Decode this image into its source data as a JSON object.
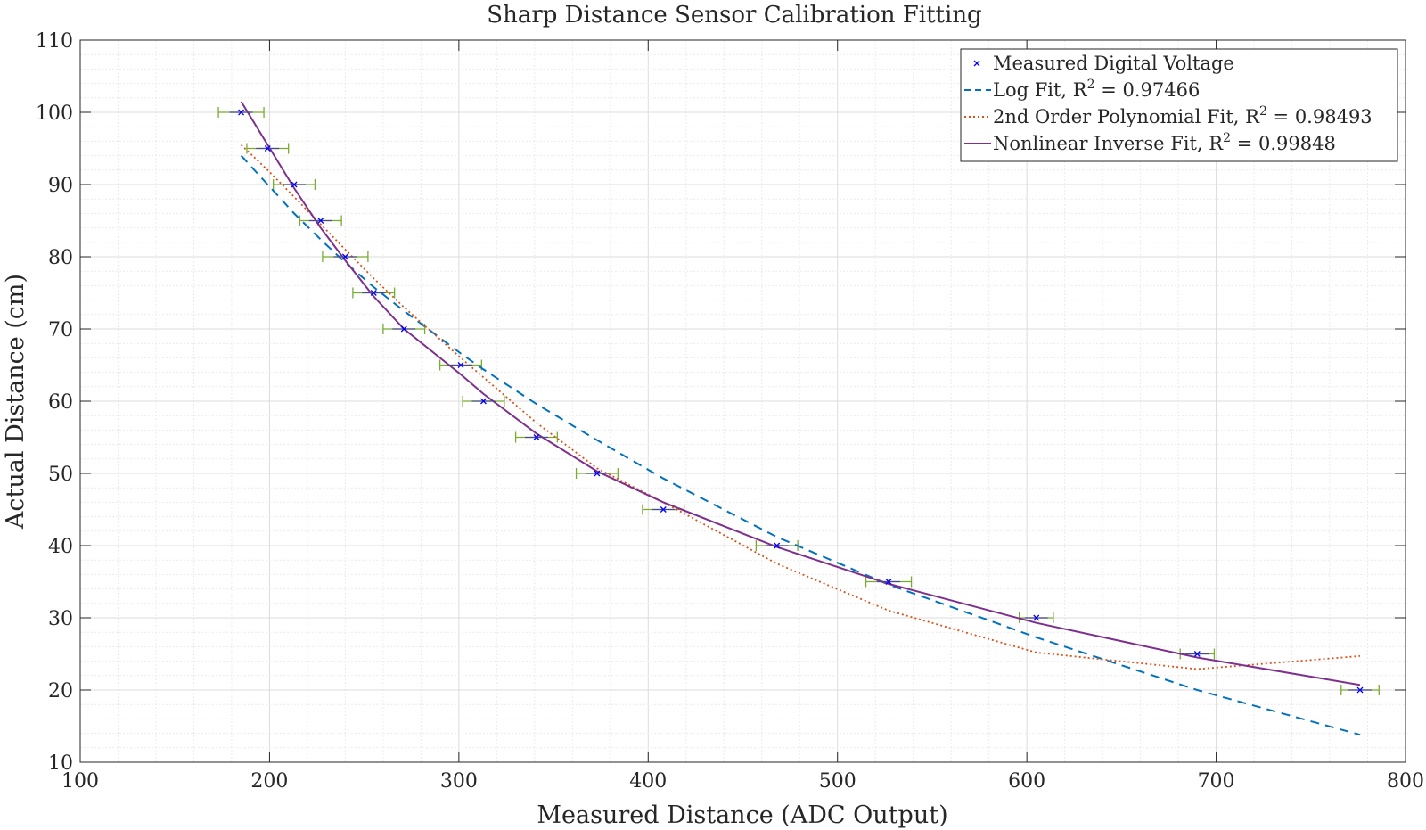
{
  "chart_data": {
    "type": "line",
    "title": "Sharp Distance Sensor Calibration Fitting",
    "xlabel": "Measured Distance (ADC Output)",
    "ylabel": "Actual Distance (cm)",
    "xlim": [
      100,
      800
    ],
    "ylim": [
      10,
      110
    ],
    "xticks": [
      100,
      200,
      300,
      400,
      500,
      600,
      700,
      800
    ],
    "yticks": [
      10,
      20,
      30,
      40,
      50,
      60,
      70,
      80,
      90,
      100,
      110
    ],
    "grid": true,
    "minor_grid": true,
    "legend_position": "top-right",
    "measured": {
      "name": "Measured Digital Voltage",
      "color": "#0000ff",
      "x": [
        185,
        199,
        213,
        227,
        240,
        255,
        271,
        301,
        313,
        341,
        373,
        408,
        468,
        527,
        605,
        690,
        776
      ],
      "y": [
        100,
        95,
        90,
        85,
        80,
        75,
        70,
        65,
        60,
        55,
        50,
        45,
        40,
        35,
        30,
        25,
        20
      ],
      "xerr": [
        12,
        11,
        11,
        11,
        12,
        11,
        11,
        11,
        11,
        11,
        11,
        11,
        11,
        12,
        9,
        9,
        10
      ],
      "errorbar_color": "#77ac30"
    },
    "fits": [
      {
        "name": "Log Fit, R",
        "r2": "0.97466",
        "color": "#0072bd",
        "dash": "10 7",
        "x": [
          185,
          199,
          213,
          227,
          240,
          255,
          271,
          301,
          313,
          341,
          373,
          408,
          468,
          527,
          605,
          690,
          776
        ],
        "y": [
          94.0,
          90.0,
          86.0,
          82.4,
          79.2,
          75.8,
          72.5,
          66.6,
          64.4,
          59.6,
          54.6,
          49.3,
          41.2,
          34.6,
          27.3,
          20.0,
          13.8
        ]
      },
      {
        "name": "2nd Order Polynomial Fit, R",
        "r2": "0.98493",
        "color": "#d95319",
        "dash": "2 3",
        "x": [
          185,
          199,
          213,
          227,
          240,
          255,
          271,
          301,
          313,
          341,
          373,
          408,
          468,
          527,
          605,
          690,
          776
        ],
        "y": [
          95.5,
          92.0,
          88.3,
          84.5,
          81.0,
          77.0,
          73.0,
          66.0,
          63.3,
          57.0,
          50.7,
          46.0,
          37.5,
          31.0,
          25.2,
          22.9,
          24.7
        ]
      },
      {
        "name": "Nonlinear Inverse Fit, R",
        "r2": "0.99848",
        "color": "#7e2f8e",
        "dash": "",
        "x": [
          185,
          199,
          213,
          227,
          240,
          255,
          271,
          301,
          313,
          341,
          373,
          408,
          468,
          527,
          605,
          690,
          776
        ],
        "y": [
          101.5,
          95.5,
          89.5,
          84.0,
          79.5,
          74.5,
          70.0,
          63.7,
          61.0,
          55.5,
          50.3,
          46.0,
          39.8,
          34.7,
          29.3,
          24.5,
          20.7
        ]
      }
    ]
  }
}
